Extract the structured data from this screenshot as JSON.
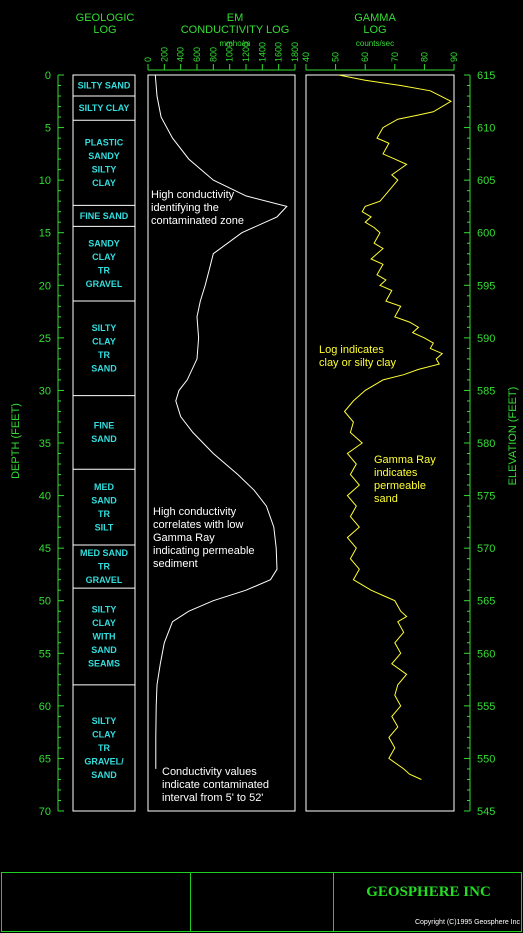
{
  "headers": {
    "geologic": "GEOLOGIC\nLOG",
    "em": "EM\nCONDUCTIVITY LOG",
    "em_units": "mmho/m",
    "gamma": "GAMMA\nLOG",
    "gamma_units": "counts/sec"
  },
  "axis_titles": {
    "depth": "DEPTH (FEET)",
    "elevation": "ELEVATION (FEET)"
  },
  "depth_ticks": [
    "0",
    "5",
    "10",
    "15",
    "20",
    "25",
    "30",
    "35",
    "40",
    "45",
    "50",
    "55",
    "60",
    "65",
    "70"
  ],
  "elevation_ticks": [
    "615",
    "610",
    "605",
    "600",
    "595",
    "590",
    "585",
    "580",
    "575",
    "570",
    "565",
    "560",
    "555",
    "550",
    "545"
  ],
  "em_ticks": [
    "0",
    "200",
    "400",
    "600",
    "800",
    "1000",
    "1200",
    "1400",
    "1600",
    "1800"
  ],
  "gamma_ticks": [
    "40",
    "50",
    "60",
    "70",
    "80",
    "90"
  ],
  "geologic_units": [
    {
      "label": "SILTY SAND",
      "top": 0,
      "bottom": 2
    },
    {
      "label": "SILTY CLAY",
      "top": 2,
      "bottom": 4.3
    },
    {
      "label": "PLASTIC\nSANDY\nSILTY\nCLAY",
      "top": 4.3,
      "bottom": 12.4
    },
    {
      "label": "FINE SAND",
      "top": 12.4,
      "bottom": 14.4
    },
    {
      "label": "SANDY\nCLAY\nTR\nGRAVEL",
      "top": 14.4,
      "bottom": 21.5
    },
    {
      "label": "SILTY\nCLAY\nTR\nSAND",
      "top": 21.5,
      "bottom": 30.5
    },
    {
      "label": "FINE\nSAND",
      "top": 30.5,
      "bottom": 37.5
    },
    {
      "label": "MED\nSAND\nTR\nSILT",
      "top": 37.5,
      "bottom": 44.7
    },
    {
      "label": "MED SAND\nTR\nGRAVEL",
      "top": 44.7,
      "bottom": 48.8
    },
    {
      "label": "SILTY\nCLAY\nWITH\nSAND\nSEAMS",
      "top": 48.8,
      "bottom": 58
    },
    {
      "label": "SILTY\nCLAY\nTR\nGRAVEL/\nSAND",
      "top": 58,
      "bottom": 70
    }
  ],
  "annotations": {
    "em_top": "High conductivity\nidentifying the\ncontaminated zone",
    "em_mid": "High conductivity\ncorrelates with low\nGamma Ray\nindicating permeable\nsediment",
    "em_bottom": "Conductivity values\nindicate contaminated\ninterval from 5' to 52'",
    "gamma_top": "Log indicates\nclay or silty clay",
    "gamma_mid": "Gamma Ray\nindicates\npermeable\nsand"
  },
  "footer": {
    "company": "GEOSPHERE INC",
    "copyright": "Copyright (C)1995 Geosphere Inc"
  },
  "colors": {
    "axis_green": "#33dd33",
    "geologic_text": "#33dddd",
    "em_curve": "#ffffff",
    "gamma_curve": "#ffff33",
    "border": "#ffffff"
  },
  "chart_data": [
    {
      "type": "line",
      "name": "EM CONDUCTIVITY LOG",
      "xlabel": "mmho/m",
      "ylabel": "DEPTH (FEET)",
      "xlim": [
        0,
        1800
      ],
      "ylim": [
        0,
        70
      ],
      "y_inverted": true,
      "points": [
        [
          90,
          0
        ],
        [
          110,
          2
        ],
        [
          160,
          4
        ],
        [
          300,
          6
        ],
        [
          500,
          8
        ],
        [
          800,
          10
        ],
        [
          1200,
          11.5
        ],
        [
          1700,
          12.5
        ],
        [
          1580,
          13.5
        ],
        [
          1150,
          15
        ],
        [
          800,
          17
        ],
        [
          750,
          18.5
        ],
        [
          700,
          20
        ],
        [
          640,
          21.5
        ],
        [
          600,
          23
        ],
        [
          620,
          25
        ],
        [
          600,
          27
        ],
        [
          480,
          29
        ],
        [
          380,
          30
        ],
        [
          340,
          31
        ],
        [
          400,
          32.5
        ],
        [
          550,
          34
        ],
        [
          800,
          36
        ],
        [
          1100,
          38
        ],
        [
          1300,
          39.5
        ],
        [
          1450,
          41
        ],
        [
          1540,
          43
        ],
        [
          1570,
          45
        ],
        [
          1580,
          47
        ],
        [
          1500,
          48
        ],
        [
          1200,
          49
        ],
        [
          800,
          50
        ],
        [
          500,
          51
        ],
        [
          300,
          52
        ],
        [
          200,
          54
        ],
        [
          150,
          56
        ],
        [
          110,
          58
        ],
        [
          100,
          60
        ],
        [
          95,
          63
        ],
        [
          95,
          66
        ]
      ]
    },
    {
      "type": "line",
      "name": "GAMMA LOG",
      "xlabel": "counts/sec",
      "ylabel": "DEPTH (FEET)",
      "xlim": [
        40,
        90
      ],
      "ylim": [
        0,
        70
      ],
      "y_inverted": true,
      "points": [
        [
          51,
          0
        ],
        [
          60,
          0.5
        ],
        [
          72,
          1
        ],
        [
          82,
          1.5
        ],
        [
          89,
          2.5
        ],
        [
          83,
          3.5
        ],
        [
          78,
          3.8
        ],
        [
          71,
          4.2
        ],
        [
          66,
          5
        ],
        [
          64,
          6
        ],
        [
          68,
          6.5
        ],
        [
          66,
          7.5
        ],
        [
          70,
          8
        ],
        [
          74,
          8.5
        ],
        [
          69,
          9.5
        ],
        [
          71,
          10
        ],
        [
          68,
          11
        ],
        [
          65,
          12
        ],
        [
          60,
          12.5
        ],
        [
          59,
          13
        ],
        [
          62,
          13.5
        ],
        [
          60,
          14
        ],
        [
          63,
          14.5
        ],
        [
          65,
          15
        ],
        [
          63,
          16
        ],
        [
          66,
          16.5
        ],
        [
          62,
          17.5
        ],
        [
          66,
          18
        ],
        [
          64,
          19
        ],
        [
          67,
          19.5
        ],
        [
          65,
          20
        ],
        [
          69,
          20.5
        ],
        [
          67,
          21.5
        ],
        [
          72,
          22
        ],
        [
          70,
          23
        ],
        [
          75,
          23.5
        ],
        [
          78,
          24
        ],
        [
          76,
          24.5
        ],
        [
          80,
          25
        ],
        [
          83,
          25.5
        ],
        [
          82,
          26
        ],
        [
          86,
          26.5
        ],
        [
          84,
          27
        ],
        [
          85,
          27.5
        ],
        [
          78,
          28
        ],
        [
          73,
          28.5
        ],
        [
          66,
          29
        ],
        [
          60,
          30
        ],
        [
          56,
          31
        ],
        [
          53,
          32
        ],
        [
          56,
          33
        ],
        [
          55,
          34
        ],
        [
          59,
          35
        ],
        [
          54,
          36
        ],
        [
          57,
          37
        ],
        [
          55,
          38
        ],
        [
          58,
          39
        ],
        [
          54,
          40
        ],
        [
          57,
          41
        ],
        [
          55,
          42
        ],
        [
          58,
          43
        ],
        [
          54,
          44
        ],
        [
          57,
          45
        ],
        [
          55,
          46
        ],
        [
          58,
          47
        ],
        [
          56,
          48
        ],
        [
          62,
          49
        ],
        [
          66,
          49.5
        ],
        [
          70,
          50
        ],
        [
          72,
          51
        ],
        [
          74,
          51.5
        ],
        [
          71,
          52
        ],
        [
          73,
          53
        ],
        [
          70,
          54
        ],
        [
          72,
          55
        ],
        [
          69,
          56
        ],
        [
          74,
          57
        ],
        [
          71,
          58
        ],
        [
          70,
          59
        ],
        [
          72,
          60
        ],
        [
          69,
          61
        ],
        [
          71,
          62
        ],
        [
          68,
          63
        ],
        [
          70,
          64
        ],
        [
          68,
          65
        ],
        [
          73,
          66
        ],
        [
          75,
          66.5
        ],
        [
          79,
          67
        ]
      ]
    }
  ]
}
